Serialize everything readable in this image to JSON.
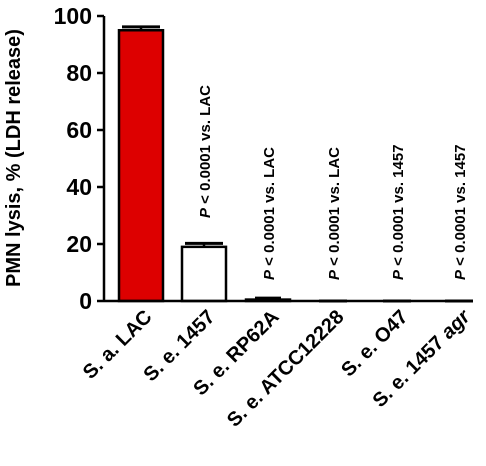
{
  "chart_data": {
    "type": "bar",
    "ylabel": "PMN lysis, % (LDH release)",
    "ylim": [
      0,
      100
    ],
    "yticks": [
      0,
      20,
      40,
      60,
      80,
      100
    ],
    "grid": false,
    "categories": [
      "S. a. LAC",
      "S. e. 1457",
      "S. e. RP62A",
      "S. e. ATCC12228",
      "S. e. O47",
      "S. e. 1457 agr"
    ],
    "values": [
      95,
      19,
      0.5,
      0,
      0,
      0
    ],
    "errors": [
      1.2,
      1.2,
      0.5,
      0,
      0,
      0
    ],
    "annotations": [
      "",
      "P < 0.0001 vs. LAC",
      "P < 0.0001 vs. LAC",
      "P < 0.0001 vs. LAC",
      "P < 0.0001 vs. 1457",
      "P < 0.0001 vs. 1457"
    ],
    "colors": {
      "highlight_fill": "#dd0000",
      "default_fill": "#ffffff",
      "stroke": "#000000"
    }
  }
}
